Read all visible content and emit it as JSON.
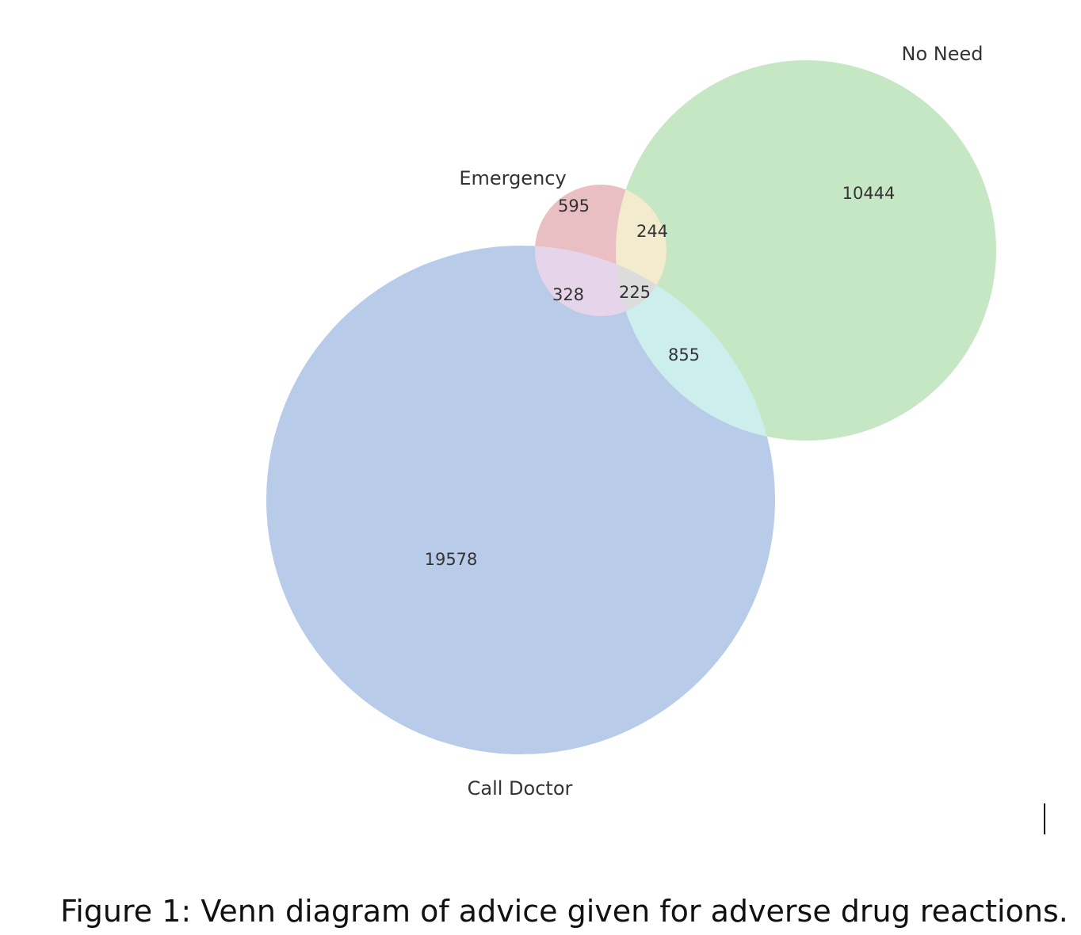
{
  "diagram": {
    "type": "venn3",
    "sets": [
      {
        "key": "emergency",
        "label": "Emergency"
      },
      {
        "key": "no_need",
        "label": "No Need"
      },
      {
        "key": "call_doctor",
        "label": "Call Doctor"
      }
    ],
    "regions": {
      "emergency_only": "595",
      "no_need_only": "10444",
      "call_doctor_only": "19578",
      "emergency_no_need": "244",
      "emergency_call_doctor": "328",
      "no_need_call_doctor": "855",
      "all_three": "225"
    },
    "colors": {
      "emergency_only": "#e9bfc3",
      "no_need_only": "#c6e7c4",
      "call_doctor_only": "#b8cce9",
      "emergency_no_need": "#f2ebce",
      "emergency_call_doctor": "#e6d5ea",
      "no_need_call_doctor": "#ccefee",
      "all_three": "#dcdcdc"
    }
  },
  "caption": "Figure 1: Venn diagram of advice given for adverse drug reactions."
}
